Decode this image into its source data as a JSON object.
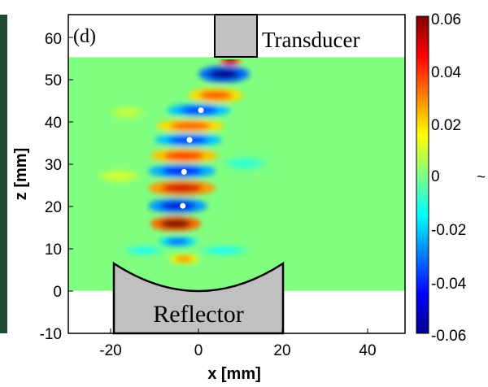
{
  "chart_data": {
    "type": "heatmap",
    "panel_label": "(d)",
    "xlabel": "x [mm]",
    "ylabel": "z [mm]",
    "xlim": [
      -30,
      50
    ],
    "ylim": [
      -10,
      65
    ],
    "x_ticks": [
      "-20",
      "0",
      "20",
      "40"
    ],
    "y_ticks": [
      "-10",
      "0",
      "10",
      "20",
      "30",
      "40",
      "50",
      "60"
    ],
    "colorbar": {
      "min": -0.06,
      "max": 0.06,
      "ticks": [
        "0.06",
        "0.04",
        "0.02",
        "0",
        "-0.02",
        "-0.04",
        "-0.06"
      ],
      "label": "~",
      "colormap": [
        "#00008f",
        "#0000ff",
        "#0080ff",
        "#00ffff",
        "#80ff80",
        "#ffff00",
        "#ff8000",
        "#ff0000",
        "#800000"
      ]
    },
    "field_region": {
      "x": [
        -30,
        50
      ],
      "z": [
        0,
        55
      ]
    },
    "field_background": "#80ff80",
    "transducer": {
      "label": "Transducer",
      "x": [
        4,
        14
      ],
      "z": [
        55,
        65
      ],
      "fill": "#c0c0c0"
    },
    "reflector": {
      "label": "Reflector",
      "x": [
        -20,
        20
      ],
      "z": [
        -10,
        6.5
      ],
      "surface": "concave",
      "fill": "#c0c0c0"
    },
    "focal_points": [
      {
        "x": 1.5,
        "z": 42.5
      },
      {
        "x": -1.2,
        "z": 35.5
      },
      {
        "x": -2.5,
        "z": 28
      },
      {
        "x": -2.8,
        "z": 20
      }
    ],
    "wave_bands": [
      {
        "x": 8.5,
        "z": 54.3,
        "width": 5,
        "height": 2.5,
        "value": 0.06
      },
      {
        "x": 7,
        "z": 51,
        "width": 12,
        "height": 4,
        "value": -0.06
      },
      {
        "x": 5,
        "z": 46,
        "width": 13,
        "height": 3.5,
        "value": 0.035
      },
      {
        "x": 1,
        "z": 42.5,
        "width": 15,
        "height": 3.2,
        "value": -0.04
      },
      {
        "x": -1,
        "z": 38.8,
        "width": 16,
        "height": 3.2,
        "value": 0.035
      },
      {
        "x": -1.5,
        "z": 35.5,
        "width": 16,
        "height": 3.2,
        "value": -0.04
      },
      {
        "x": -2.5,
        "z": 31.8,
        "width": 16,
        "height": 3.4,
        "value": 0.04
      },
      {
        "x": -3,
        "z": 28.2,
        "width": 16,
        "height": 3.4,
        "value": -0.045
      },
      {
        "x": -3,
        "z": 24.2,
        "width": 16,
        "height": 3.6,
        "value": 0.05
      },
      {
        "x": -4,
        "z": 20,
        "width": 14,
        "height": 3.6,
        "value": -0.05
      },
      {
        "x": -4.5,
        "z": 15.8,
        "width": 12,
        "height": 3.6,
        "value": 0.06
      },
      {
        "x": -4,
        "z": 11.6,
        "width": 9,
        "height": 2.4,
        "value": -0.035
      },
      {
        "x": -2.5,
        "z": 7.5,
        "width": 7,
        "height": 2.2,
        "value": 0.03
      },
      {
        "x": -12,
        "z": 9.5,
        "width": 9,
        "height": 2,
        "value": -0.015
      },
      {
        "x": 7,
        "z": 9.5,
        "width": 11,
        "height": 2,
        "value": -0.015
      },
      {
        "x": -18,
        "z": 27,
        "width": 10,
        "height": 3,
        "value": 0.01
      },
      {
        "x": 12,
        "z": 30,
        "width": 10,
        "height": 3,
        "value": -0.01
      },
      {
        "x": -16,
        "z": 42,
        "width": 8,
        "height": 3,
        "value": 0.008
      }
    ]
  }
}
